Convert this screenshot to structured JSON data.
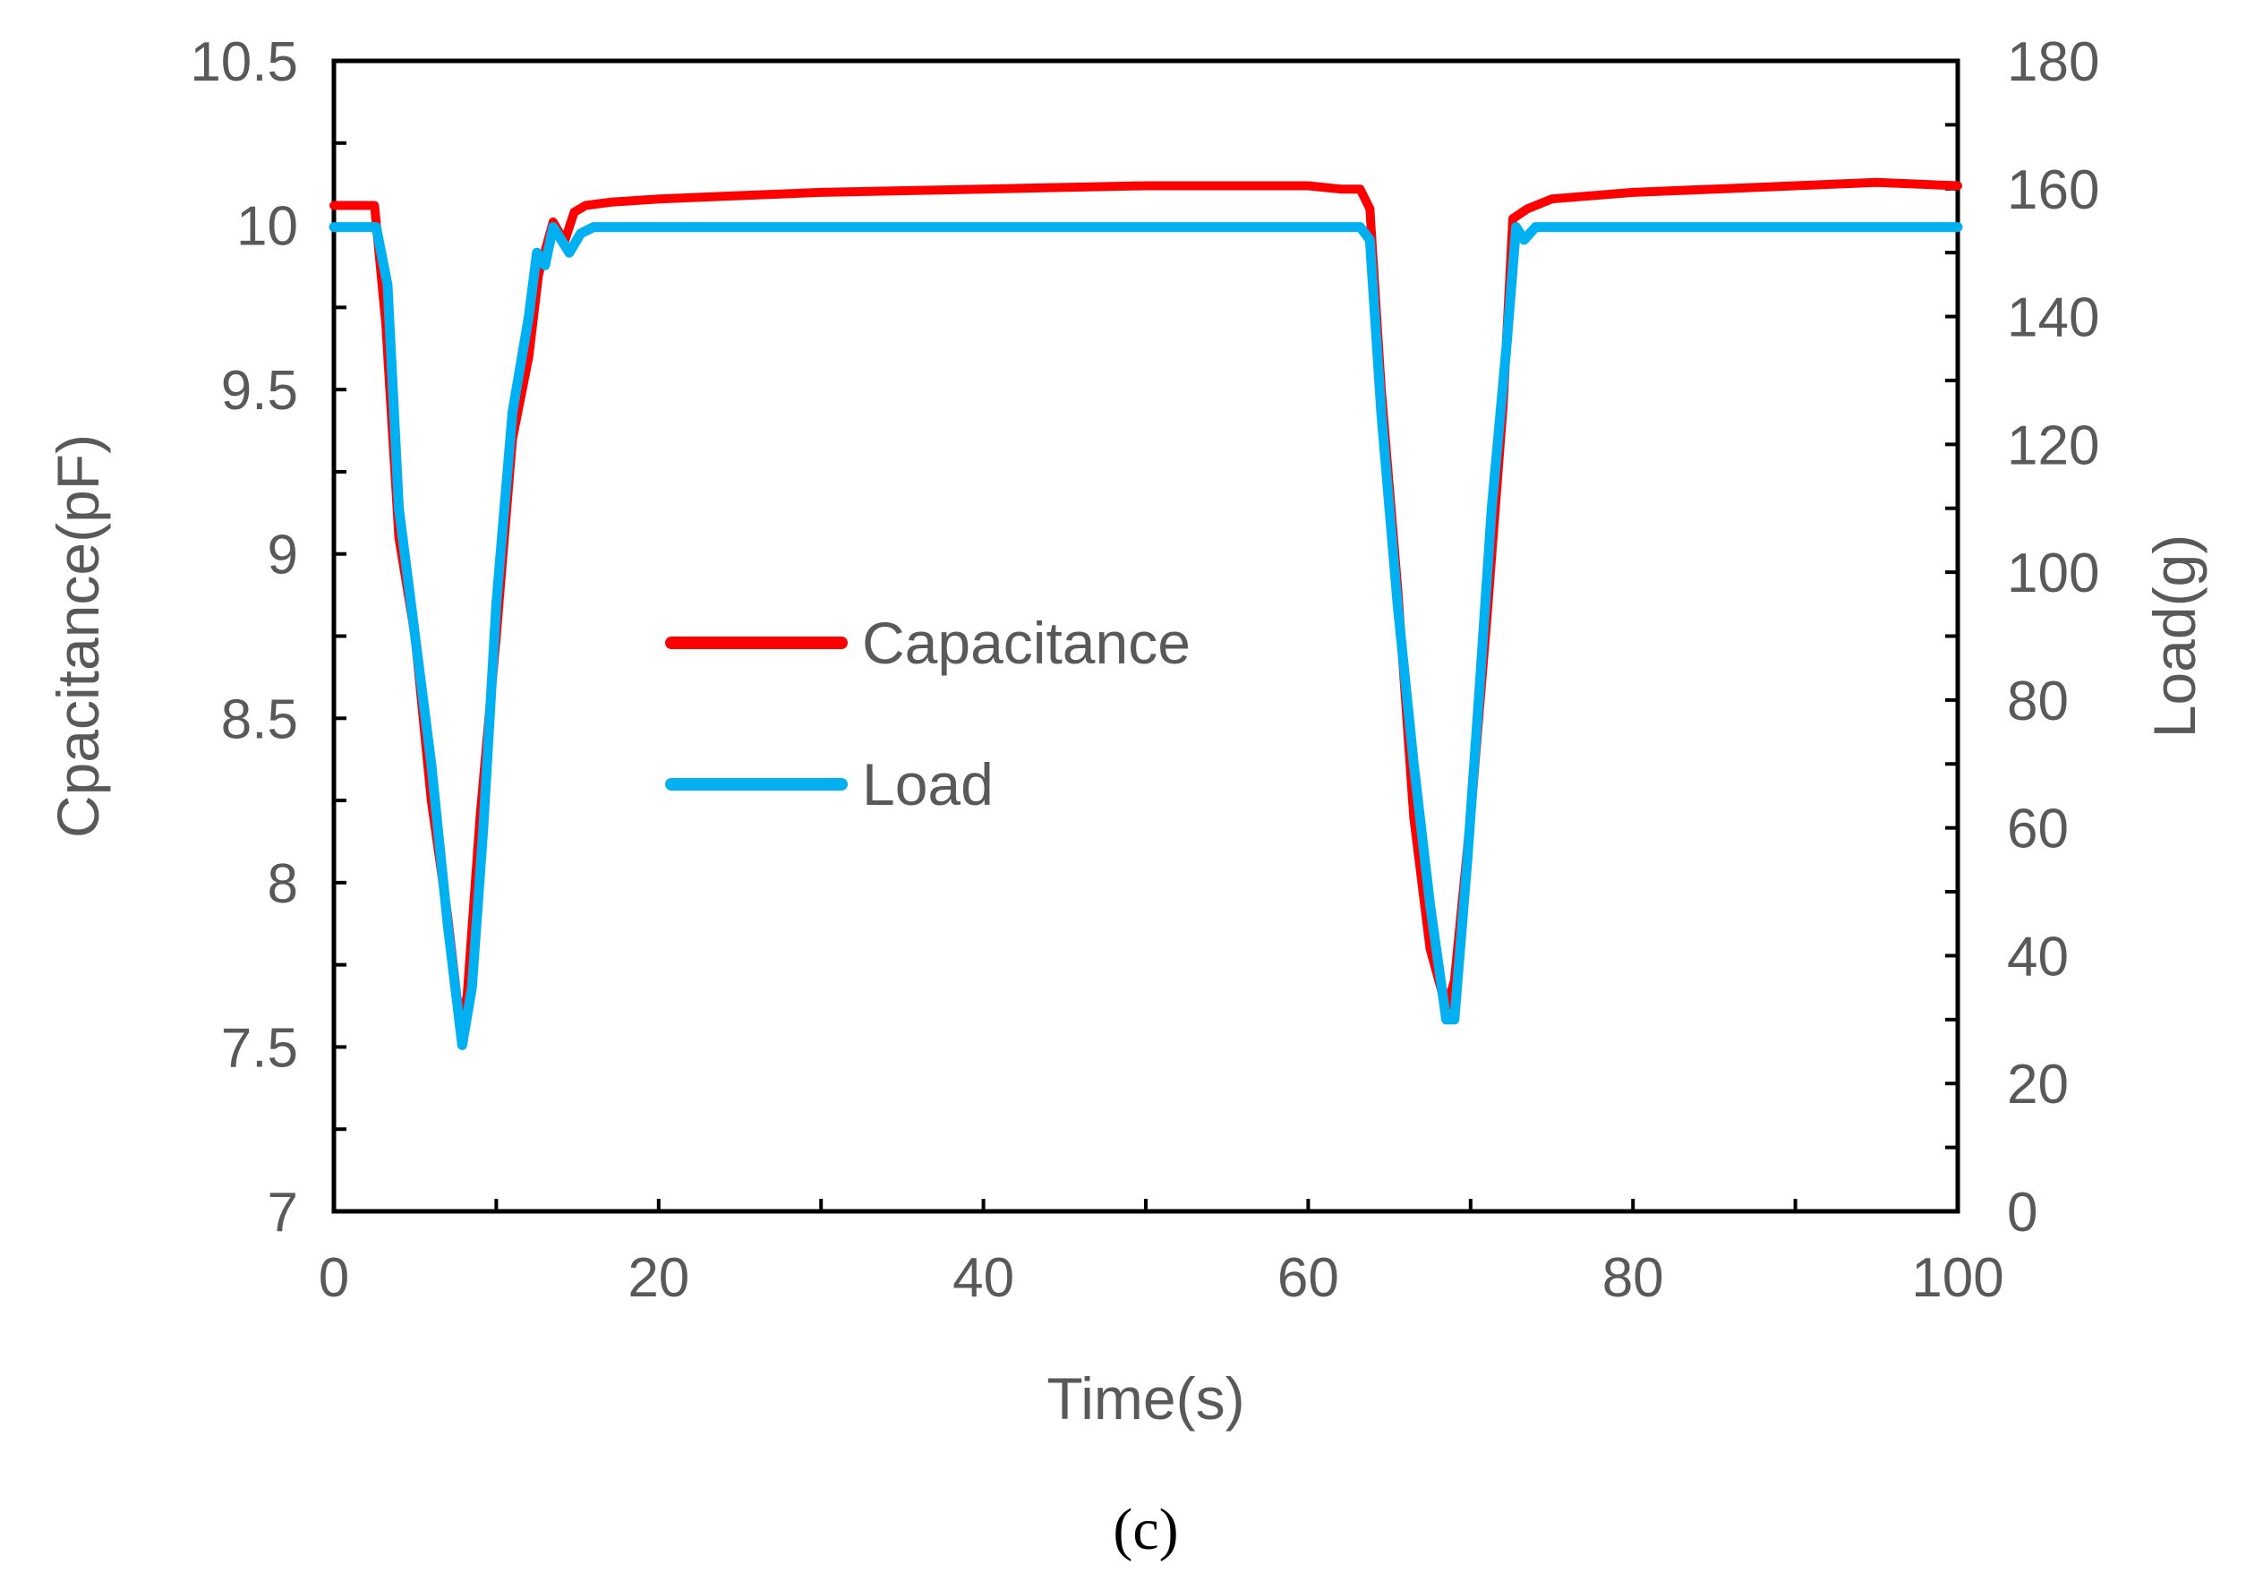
{
  "chart_data": {
    "type": "line",
    "panel_label": "(c)",
    "title": "",
    "xlabel": "Time(s)",
    "ylabel_left": "Cpacitance(pF)",
    "ylabel_right": "Load(g)",
    "xlim": [
      0,
      100
    ],
    "ylim_left": [
      7,
      10.5
    ],
    "ylim_right": [
      0,
      180
    ],
    "x_ticks": [
      0,
      20,
      40,
      60,
      80,
      100
    ],
    "x_tick_labels": [
      "0",
      "20",
      "40",
      "60",
      "80",
      "100"
    ],
    "y_left_ticks": [
      7,
      7.5,
      8,
      8.5,
      9,
      9.5,
      10,
      10.5
    ],
    "y_left_tick_labels": [
      "7",
      "7.5",
      "8",
      "8.5",
      "9",
      "9.5",
      "10",
      "10.5"
    ],
    "y_right_ticks": [
      0,
      20,
      40,
      60,
      80,
      100,
      120,
      140,
      160,
      180
    ],
    "y_right_tick_labels": [
      "0",
      "20",
      "40",
      "60",
      "80",
      "100",
      "120",
      "140",
      "160",
      "180"
    ],
    "legend": {
      "position": "center-left"
    },
    "series": [
      {
        "name": "Capacitance",
        "axis": "left",
        "color": "#ff0000",
        "x": [
          0,
          2.5,
          3.2,
          4,
          5,
          6,
          7,
          7.7,
          8.2,
          9,
          10,
          11,
          12,
          12.6,
          13.5,
          14.2,
          14.8,
          15.5,
          17,
          20,
          25,
          30,
          40,
          50,
          55,
          60,
          62,
          63.2,
          63.8,
          64.5,
          65.5,
          66.5,
          67.5,
          68.5,
          69,
          70,
          71,
          72,
          72.6,
          73.5,
          75,
          80,
          85,
          90,
          95,
          100
        ],
        "values": [
          10.06,
          10.06,
          9.7,
          9.05,
          8.75,
          8.25,
          7.9,
          7.6,
          7.65,
          8.2,
          8.75,
          9.35,
          9.6,
          9.85,
          10.01,
          9.95,
          10.04,
          10.06,
          10.07,
          10.08,
          10.09,
          10.1,
          10.11,
          10.12,
          10.12,
          10.12,
          10.11,
          10.11,
          10.05,
          9.5,
          8.9,
          8.2,
          7.8,
          7.62,
          7.7,
          8.2,
          8.8,
          9.45,
          10.02,
          10.05,
          10.08,
          10.1,
          10.11,
          10.12,
          10.13,
          10.12
        ]
      },
      {
        "name": "Load",
        "axis": "right",
        "color": "#00b0f0",
        "x": [
          0,
          2.6,
          3.3,
          4,
          5,
          6,
          7,
          7.9,
          8.5,
          9.2,
          10,
          11,
          12,
          12.5,
          13,
          13.5,
          14,
          14.5,
          15.2,
          16,
          20,
          30,
          40,
          50,
          60,
          62,
          63.2,
          63.8,
          64.5,
          65.5,
          66.5,
          67.5,
          68.5,
          69,
          69.8,
          70.5,
          71.3,
          72.2,
          72.8,
          73.3,
          74,
          80,
          90,
          100
        ],
        "values": [
          154,
          154,
          145,
          110,
          90,
          70,
          45,
          26,
          35,
          60,
          95,
          125,
          140,
          150,
          148,
          154,
          152,
          150,
          153,
          154,
          154,
          154,
          154,
          154,
          154,
          154,
          154,
          152,
          125,
          95,
          70,
          48,
          30,
          30,
          55,
          80,
          110,
          135,
          154,
          152,
          154,
          154,
          154,
          154
        ]
      }
    ]
  }
}
